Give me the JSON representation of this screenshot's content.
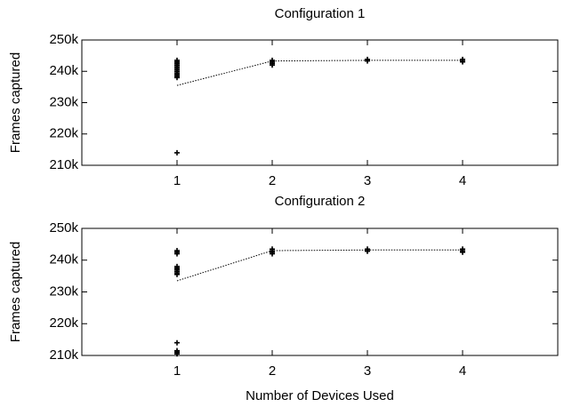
{
  "chart_data": [
    {
      "type": "scatter",
      "title": "Configuration 1",
      "ylabel": "Frames captured",
      "xlim": [
        0,
        5
      ],
      "xticks": [
        1,
        2,
        3,
        4
      ],
      "ylim": [
        210000,
        250000
      ],
      "yticks": [
        {
          "value": 210000,
          "label": "210k"
        },
        {
          "value": 220000,
          "label": "220k"
        },
        {
          "value": 230000,
          "label": "230k"
        },
        {
          "value": 240000,
          "label": "240k"
        },
        {
          "value": 250000,
          "label": "250k"
        }
      ],
      "series": [
        {
          "type": "scatter",
          "marker": "plus",
          "color": "#000000",
          "x": [
            1,
            1,
            1,
            1,
            1,
            1,
            1,
            1,
            1,
            1,
            1,
            1,
            1,
            2,
            2,
            2,
            2,
            3,
            3,
            4,
            4,
            4
          ],
          "values": [
            243500,
            243000,
            242500,
            242000,
            241500,
            241000,
            240500,
            240000,
            239500,
            239000,
            238500,
            238000,
            214000,
            243500,
            243000,
            242500,
            242000,
            243800,
            243300,
            243800,
            243300,
            243000
          ]
        },
        {
          "type": "line",
          "style": "dotted",
          "color": "#000000",
          "x": [
            1,
            2,
            3,
            4
          ],
          "values": [
            235500,
            243300,
            243500,
            243500
          ]
        }
      ]
    },
    {
      "type": "scatter",
      "title": "Configuration 2",
      "ylabel": "Frames captured",
      "xlabel": "Number of Devices Used",
      "xlim": [
        0,
        5
      ],
      "xticks": [
        1,
        2,
        3,
        4
      ],
      "ylim": [
        210000,
        250000
      ],
      "yticks": [
        {
          "value": 210000,
          "label": "210k"
        },
        {
          "value": 220000,
          "label": "220k"
        },
        {
          "value": 230000,
          "label": "230k"
        },
        {
          "value": 240000,
          "label": "240k"
        },
        {
          "value": 250000,
          "label": "250k"
        }
      ],
      "series": [
        {
          "type": "scatter",
          "marker": "plus",
          "color": "#000000",
          "x": [
            1,
            1,
            1,
            1,
            1,
            1,
            1,
            1,
            1,
            1,
            1,
            1,
            1,
            2,
            2,
            2,
            2,
            3,
            3,
            3,
            4,
            4,
            4
          ],
          "values": [
            243000,
            242500,
            242000,
            238000,
            237500,
            237000,
            236500,
            236000,
            235500,
            214000,
            211500,
            211000,
            210500,
            243500,
            243000,
            242500,
            242000,
            243500,
            243000,
            242800,
            243500,
            243000,
            242500
          ]
        },
        {
          "type": "line",
          "style": "dotted",
          "color": "#000000",
          "x": [
            1,
            2,
            3,
            4
          ],
          "values": [
            233500,
            243000,
            243200,
            243200
          ]
        }
      ]
    }
  ]
}
